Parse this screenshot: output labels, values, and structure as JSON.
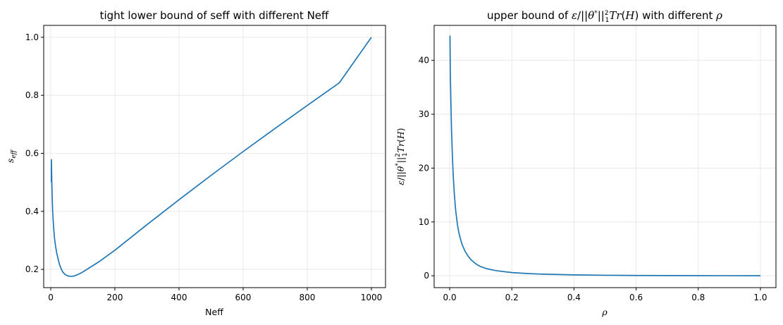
{
  "chart_data": [
    {
      "type": "line",
      "title": "tight lower bound of seff with different Neff",
      "xlabel": "Neff",
      "ylabel": "s_eff",
      "xlim": [
        -22,
        1044
      ],
      "ylim": [
        0.137,
        1.041
      ],
      "xticks": [
        0,
        200,
        400,
        600,
        800,
        1000
      ],
      "xtick_labels": [
        "0",
        "200",
        "400",
        "600",
        "800",
        "1000"
      ],
      "yticks": [
        0.2,
        0.4,
        0.6,
        0.8,
        1.0
      ],
      "ytick_labels": [
        "0.2",
        "0.4",
        "0.6",
        "0.8",
        "1.0"
      ],
      "grid": true,
      "series": [
        {
          "color": "#1f77b4",
          "x": [
            2,
            2,
            3,
            4,
            5,
            6,
            8,
            10,
            12,
            15,
            18,
            22,
            27,
            32,
            38,
            45,
            52,
            60,
            66,
            72,
            80,
            90,
            100,
            120,
            150,
            200,
            250,
            300,
            400,
            500,
            600,
            700,
            800,
            900,
            1000
          ],
          "y": [
            0.5,
            0.578,
            0.52,
            0.47,
            0.43,
            0.4,
            0.36,
            0.33,
            0.305,
            0.28,
            0.26,
            0.24,
            0.218,
            0.203,
            0.19,
            0.182,
            0.178,
            0.176,
            0.176,
            0.177,
            0.18,
            0.185,
            0.191,
            0.205,
            0.226,
            0.266,
            0.31,
            0.354,
            0.44,
            0.524,
            0.606,
            0.686,
            0.765,
            0.843,
            1.0
          ]
        }
      ]
    },
    {
      "type": "line",
      "title": "upper bound of ε/||θ*||₁²Tr(H) with different ρ",
      "xlabel": "ρ",
      "ylabel": "ε/||θ*||₁²Tr(H)",
      "xlim": [
        -0.05,
        1.05
      ],
      "ylim": [
        -2.2,
        46.5
      ],
      "xticks": [
        0,
        0.2,
        0.4,
        0.6,
        0.8,
        1.0
      ],
      "xtick_labels": [
        "0.0",
        "0.2",
        "0.4",
        "0.6",
        "0.8",
        "1.0"
      ],
      "yticks": [
        0,
        10,
        20,
        30,
        40
      ],
      "ytick_labels": [
        "0",
        "10",
        "20",
        "30",
        "40"
      ],
      "grid": true,
      "series": [
        {
          "color": "#1f77b4",
          "x": [
            0.001,
            0.001,
            0.002,
            0.004,
            0.006,
            0.008,
            0.01,
            0.012,
            0.015,
            0.018,
            0.02,
            0.025,
            0.03,
            0.035,
            0.04,
            0.05,
            0.06,
            0.07,
            0.08,
            0.09,
            0.1,
            0.12,
            0.15,
            0.2,
            0.25,
            0.3,
            0.4,
            0.5,
            0.6,
            0.7,
            0.8,
            0.9,
            1.0
          ],
          "y": [
            43.0,
            44.5,
            38.0,
            32.0,
            27.0,
            23.5,
            20.5,
            18.0,
            15.2,
            13.0,
            11.8,
            9.5,
            7.9,
            6.8,
            5.8,
            4.5,
            3.6,
            2.9,
            2.4,
            2.0,
            1.7,
            1.3,
            0.95,
            0.6,
            0.42,
            0.3,
            0.17,
            0.1,
            0.06,
            0.04,
            0.025,
            0.015,
            0.01
          ]
        }
      ]
    }
  ]
}
